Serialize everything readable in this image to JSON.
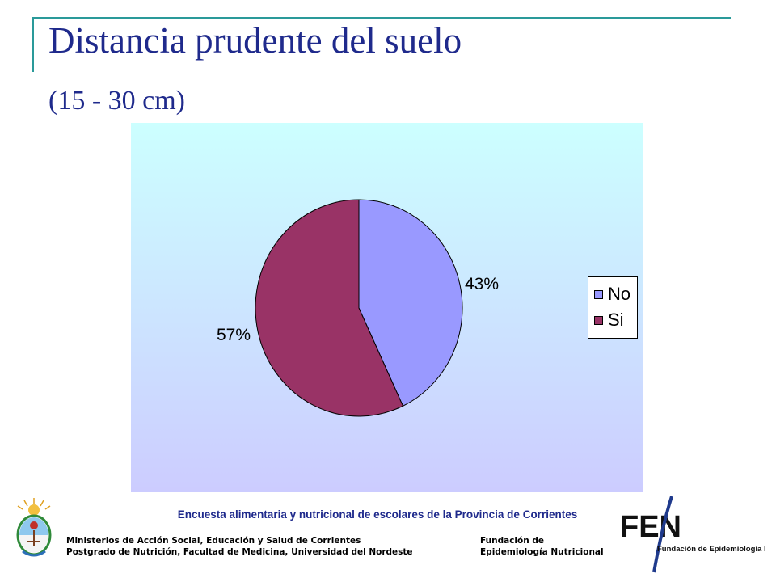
{
  "slide": {
    "title": "Distancia prudente del suelo",
    "subtitle": "(15 - 30 cm)"
  },
  "chart_data": {
    "type": "pie",
    "categories": [
      "No",
      "Si"
    ],
    "values": [
      43,
      57
    ],
    "labels": [
      "43%",
      "57%"
    ],
    "colors": [
      "#9999ff",
      "#993366"
    ],
    "legend_position": "right",
    "title": ""
  },
  "footer": {
    "survey": "Encuesta alimentaria y  nutricional de escolares de la Provincia de Corrientes",
    "left_line1": "Ministerios de Acción Social, Educación y Salud de Corrientes",
    "left_line2": "Postgrado de Nutrición, Facultad de Medicina, Universidad del Nordeste",
    "right_line1": "Fundación de",
    "right_line2": "Epidemiología Nutricional",
    "logo_text": "FEN",
    "logo_subtext": "Fundación de Epidemiología Nutricional"
  }
}
